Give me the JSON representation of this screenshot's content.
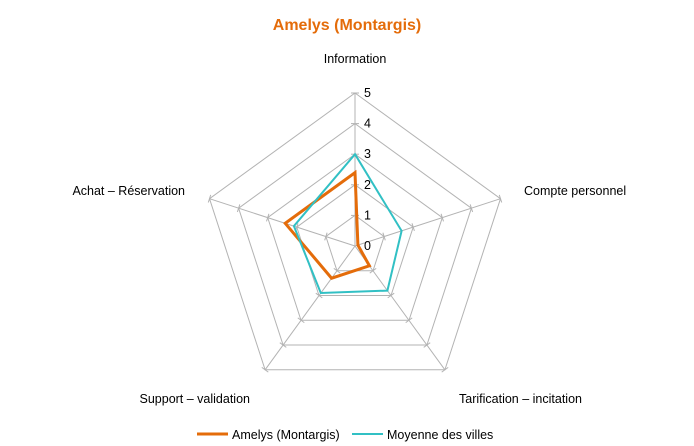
{
  "chart_data": {
    "type": "radar",
    "title": "Amelys (Montargis)",
    "categories": [
      "Information",
      "Compte personnel",
      "Tarification – incitation",
      "Support – validation",
      "Achat – Réservation"
    ],
    "rlim": [
      0,
      5
    ],
    "ticks": [
      "0",
      "1",
      "2",
      "3",
      "4",
      "5"
    ],
    "grid": true,
    "legend": "bottom",
    "series": [
      {
        "name": "Amelys (Montargis)",
        "color": "#e46c0a",
        "values": [
          2.4,
          0.1,
          0.8,
          1.3,
          2.4
        ]
      },
      {
        "name": "Moyenne des villes",
        "color": "#31c0c4",
        "values": [
          3.0,
          1.6,
          1.8,
          1.9,
          2.1
        ]
      }
    ]
  }
}
